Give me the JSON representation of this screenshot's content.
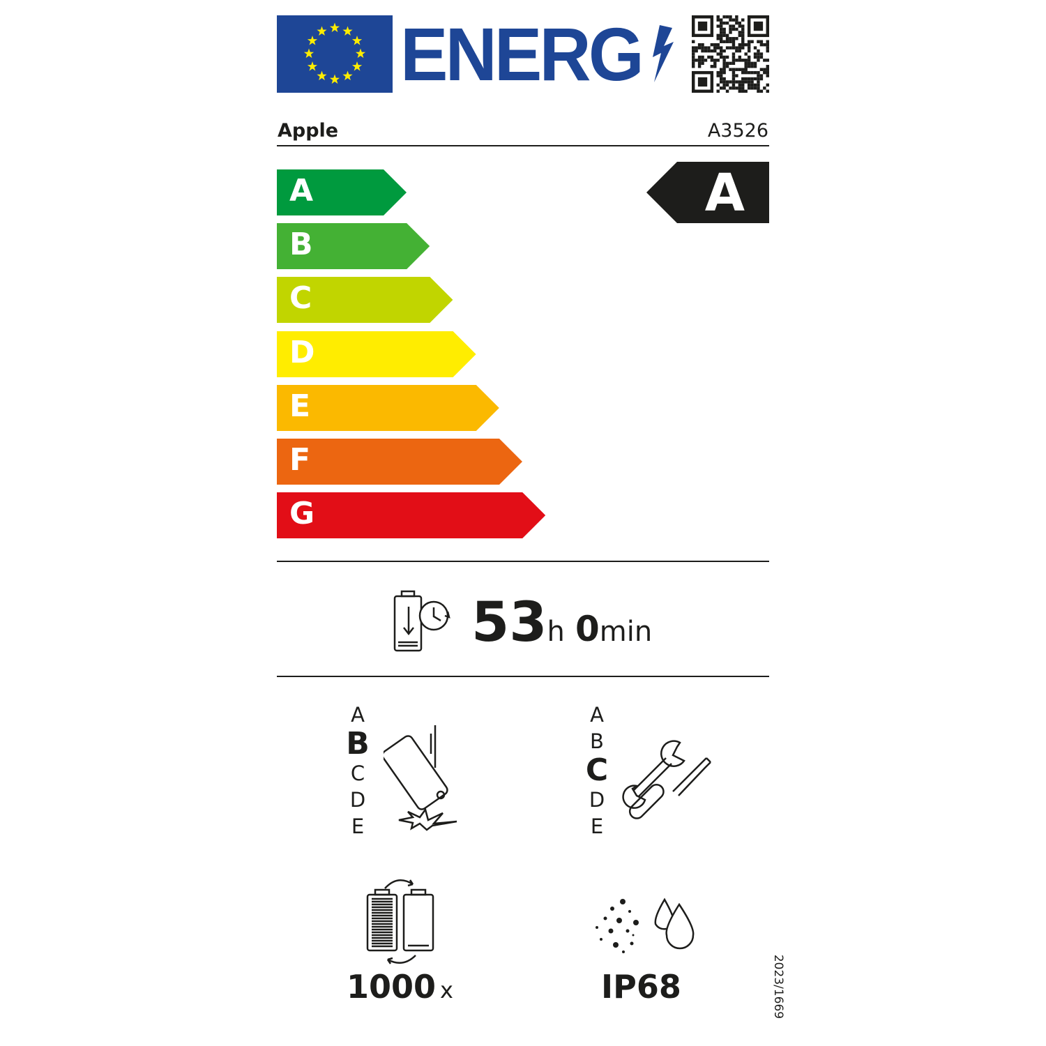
{
  "header": {
    "logo_text": "ENERG",
    "eu_flag": "eu-flag-icon",
    "qr": "qr-code"
  },
  "supplier": {
    "brand": "Apple",
    "model": "A3526"
  },
  "scale": {
    "classes": [
      {
        "label": "A",
        "color": "#009a3e"
      },
      {
        "label": "B",
        "color": "#44b134"
      },
      {
        "label": "C",
        "color": "#c1d500"
      },
      {
        "label": "D",
        "color": "#ffed00"
      },
      {
        "label": "E",
        "color": "#fbb900"
      },
      {
        "label": "F",
        "color": "#ec6611"
      },
      {
        "label": "G",
        "color": "#e20e17"
      }
    ],
    "rating": "A"
  },
  "endurance": {
    "icon": "battery-endurance-icon",
    "hours": "53",
    "hours_unit": "h",
    "minutes": "0",
    "minutes_unit": "min"
  },
  "drop_resistance": {
    "icon": "phone-drop-icon",
    "classes": [
      "A",
      "B",
      "C",
      "D",
      "E"
    ],
    "selected": "B"
  },
  "repairability": {
    "icon": "tools-icon",
    "classes": [
      "A",
      "B",
      "C",
      "D",
      "E"
    ],
    "selected": "C"
  },
  "battery_cycles": {
    "icon": "battery-cycle-icon",
    "value": "1000",
    "unit": "x"
  },
  "ingress": {
    "icon": "dust-water-icon",
    "value": "IP68"
  },
  "regulation": "2023/1669"
}
